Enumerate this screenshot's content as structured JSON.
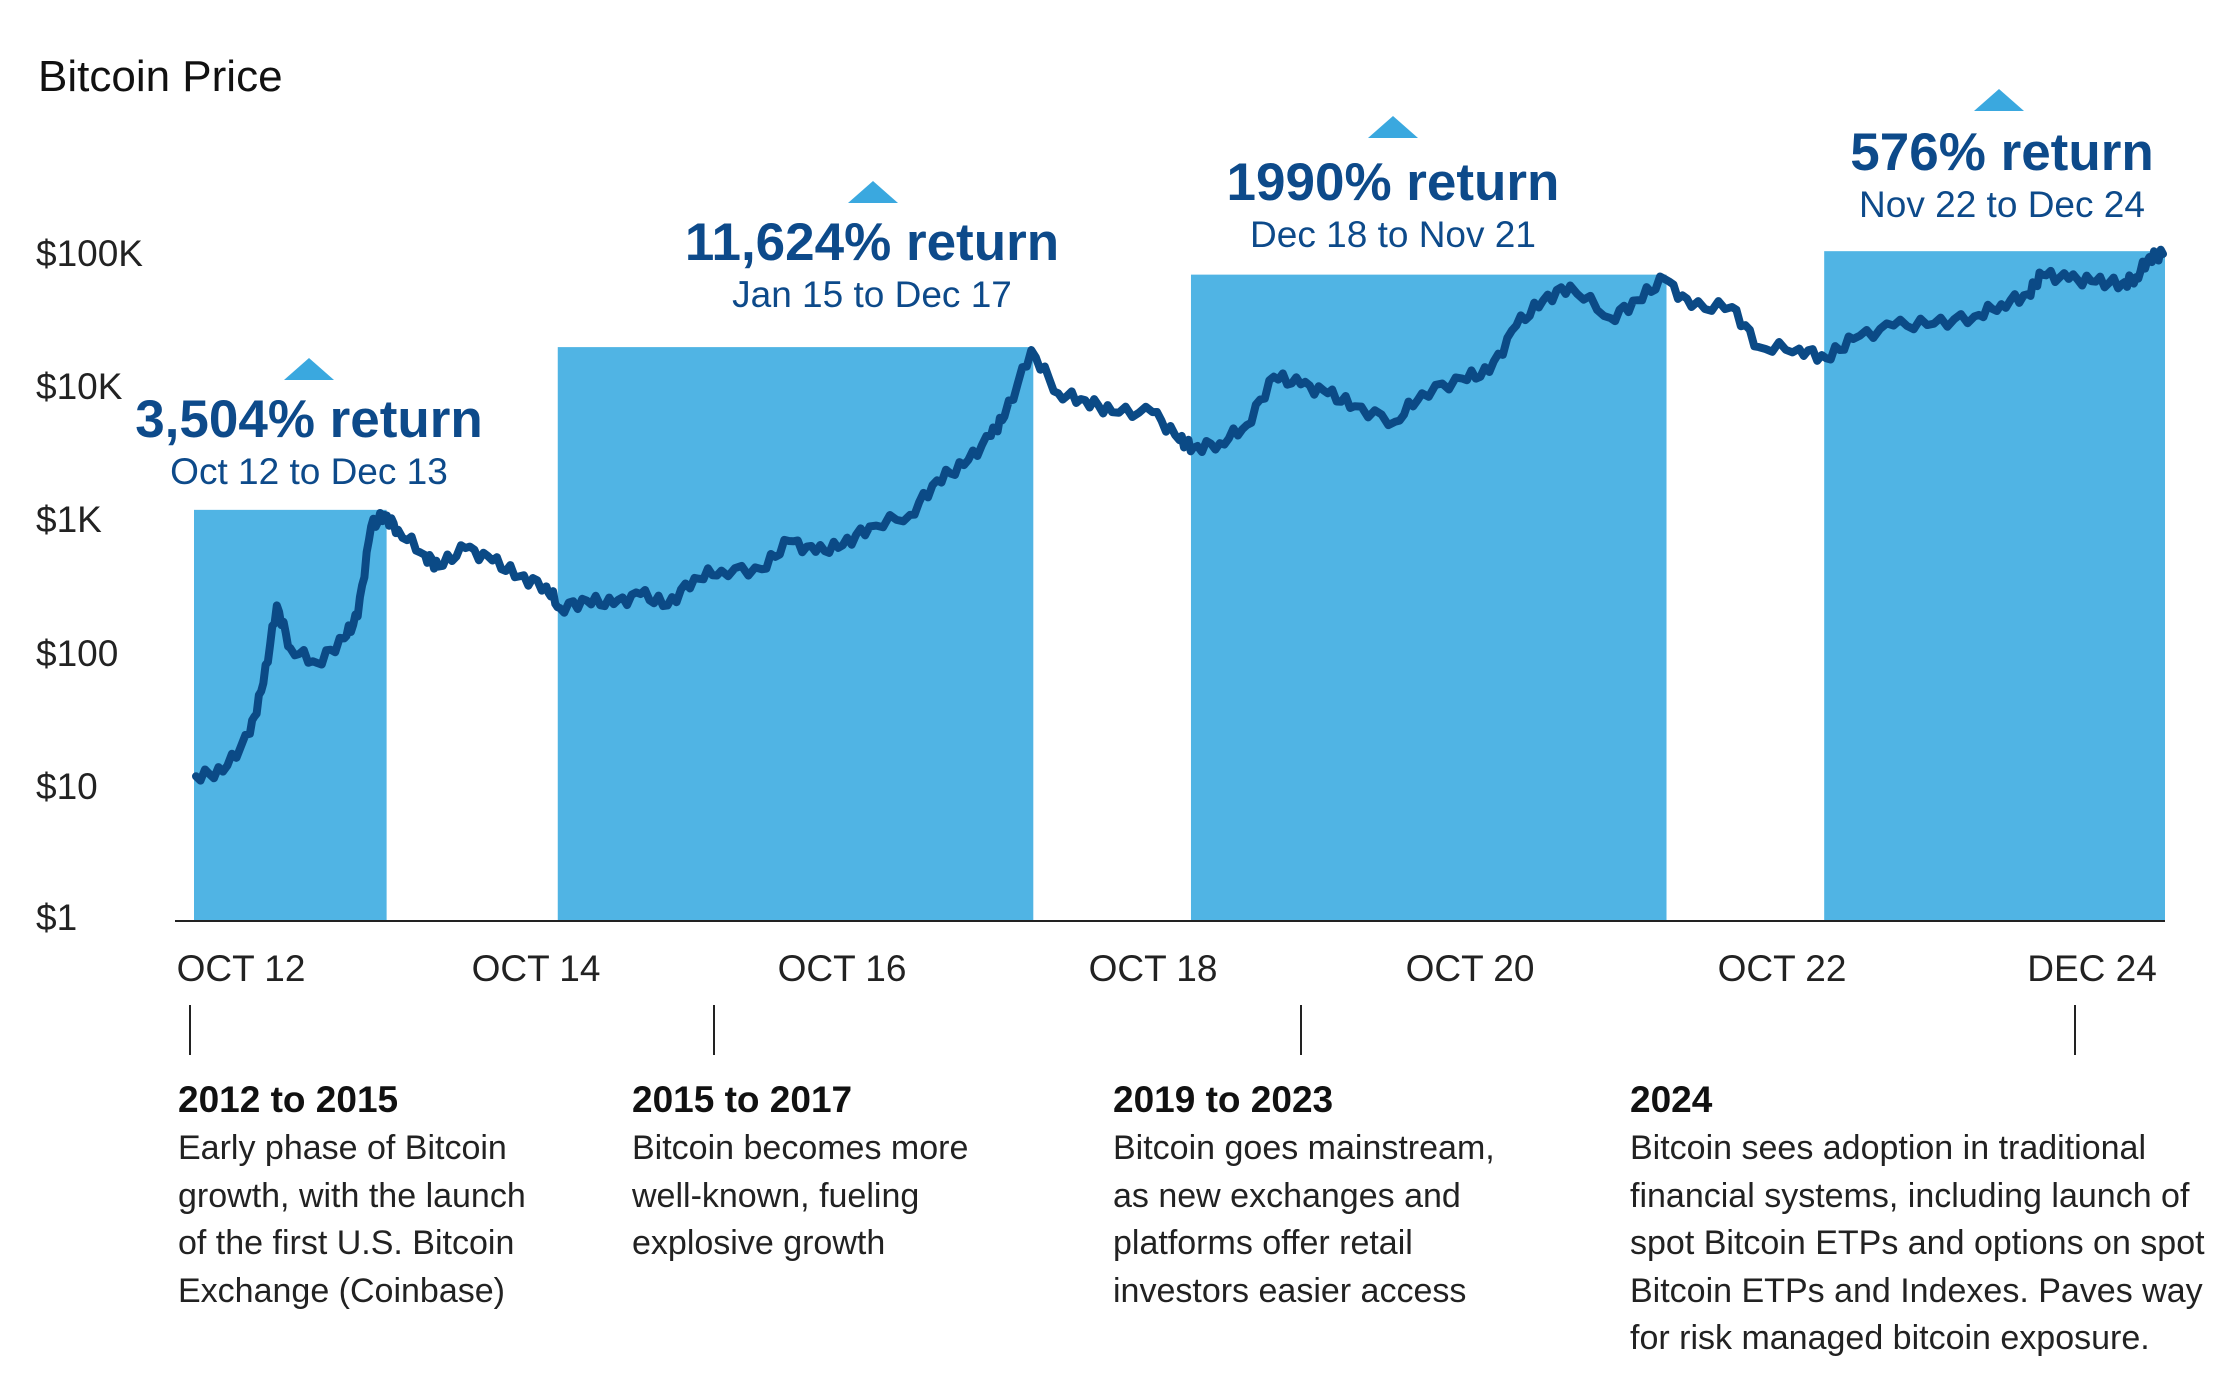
{
  "chart_data": {
    "type": "line",
    "title": "Bitcoin Price",
    "y_scale": "log",
    "ylim": [
      1,
      100000
    ],
    "y_ticks": [
      "$1",
      "$10",
      "$100",
      "$1K",
      "$10K",
      "$100K"
    ],
    "y_tick_values": [
      1,
      10,
      100,
      1000,
      10000,
      100000
    ],
    "x_ticks": [
      "OCT 12",
      "OCT 14",
      "OCT 16",
      "OCT 18",
      "OCT 20",
      "OCT 22",
      "DEC 24"
    ],
    "grid": false,
    "colors": {
      "line": "#0b4a86",
      "highlight": "#50b4e4",
      "annotation": "#0d4a8a",
      "marker": "#3aa8df"
    },
    "series": [
      {
        "x": [
          "2012-10",
          "2012-12",
          "2013-02",
          "2013-03",
          "2013-04",
          "2013-05",
          "2013-07",
          "2013-09",
          "2013-10",
          "2013-11",
          "2013-12",
          "2014-01",
          "2014-03",
          "2014-04",
          "2014-06",
          "2014-08",
          "2014-10",
          "2014-12",
          "2015-01",
          "2015-03",
          "2015-05",
          "2015-07",
          "2015-09",
          "2015-11",
          "2016-01",
          "2016-04",
          "2016-06",
          "2016-08",
          "2016-10",
          "2016-12",
          "2017-03",
          "2017-05",
          "2017-07",
          "2017-09",
          "2017-10",
          "2017-12",
          "2018-02",
          "2018-04",
          "2018-06",
          "2018-09",
          "2018-11",
          "2018-12",
          "2019-02",
          "2019-04",
          "2019-06",
          "2019-08",
          "2019-10",
          "2019-12",
          "2020-03",
          "2020-05",
          "2020-08",
          "2020-10",
          "2020-12",
          "2021-02",
          "2021-04",
          "2021-07",
          "2021-09",
          "2021-11",
          "2022-01",
          "2022-04",
          "2022-06",
          "2022-09",
          "2022-11",
          "2023-01",
          "2023-04",
          "2023-07",
          "2023-10",
          "2023-12",
          "2024-02",
          "2024-03",
          "2024-05",
          "2024-07",
          "2024-09",
          "2024-10",
          "2024-11",
          "2024-12"
        ],
        "values": [
          12,
          13,
          25,
          60,
          230,
          110,
          85,
          130,
          190,
          900,
          1100,
          850,
          550,
          450,
          620,
          500,
          380,
          320,
          220,
          250,
          235,
          280,
          230,
          370,
          420,
          430,
          700,
          580,
          650,
          900,
          1100,
          2000,
          2600,
          4300,
          6000,
          19000,
          9000,
          8000,
          6500,
          6500,
          4000,
          3500,
          3800,
          5200,
          12000,
          10500,
          9000,
          7200,
          5500,
          9000,
          11600,
          13000,
          29000,
          45000,
          58000,
          33000,
          45000,
          65000,
          40000,
          40000,
          20000,
          19500,
          16500,
          23000,
          29000,
          30000,
          34000,
          42000,
          50000,
          70000,
          65000,
          62000,
          60000,
          67000,
          95000,
          100000
        ]
      }
    ],
    "highlight_periods": [
      {
        "start": "2012-10",
        "end": "2013-12",
        "return": "3,504% return",
        "period": "Oct 12 to Dec 13",
        "top_value": 1200
      },
      {
        "start": "2015-01",
        "end": "2017-12",
        "return": "11,624% return",
        "period": "Jan 15 to Dec 17",
        "top_value": 20000
      },
      {
        "start": "2018-12",
        "end": "2021-11",
        "return": "1990% return",
        "period": "Dec 18 to Nov 21",
        "top_value": 70000
      },
      {
        "start": "2022-11",
        "end": "2024-12",
        "return": "576% return",
        "period": "Nov 22 to Dec 24",
        "top_value": 105000
      }
    ]
  },
  "sections": [
    {
      "heading": "2012 to 2015",
      "lines": [
        "Early phase of Bitcoin",
        "growth, with the launch",
        "of the first U.S. Bitcoin",
        "Exchange (Coinbase)"
      ]
    },
    {
      "heading": "2015 to 2017",
      "lines": [
        "Bitcoin becomes more",
        "well-known, fueling",
        "explosive growth"
      ]
    },
    {
      "heading": "2019 to 2023",
      "lines": [
        "Bitcoin goes mainstream,",
        "as new exchanges and",
        "platforms offer retail",
        "investors easier access"
      ]
    },
    {
      "heading": "2024",
      "lines": [
        "Bitcoin sees adoption in traditional",
        "financial systems, including launch of",
        "spot Bitcoin ETPs and options on spot",
        "Bitcoin ETPs and Indexes. Paves way",
        "for risk managed bitcoin exposure."
      ]
    }
  ]
}
